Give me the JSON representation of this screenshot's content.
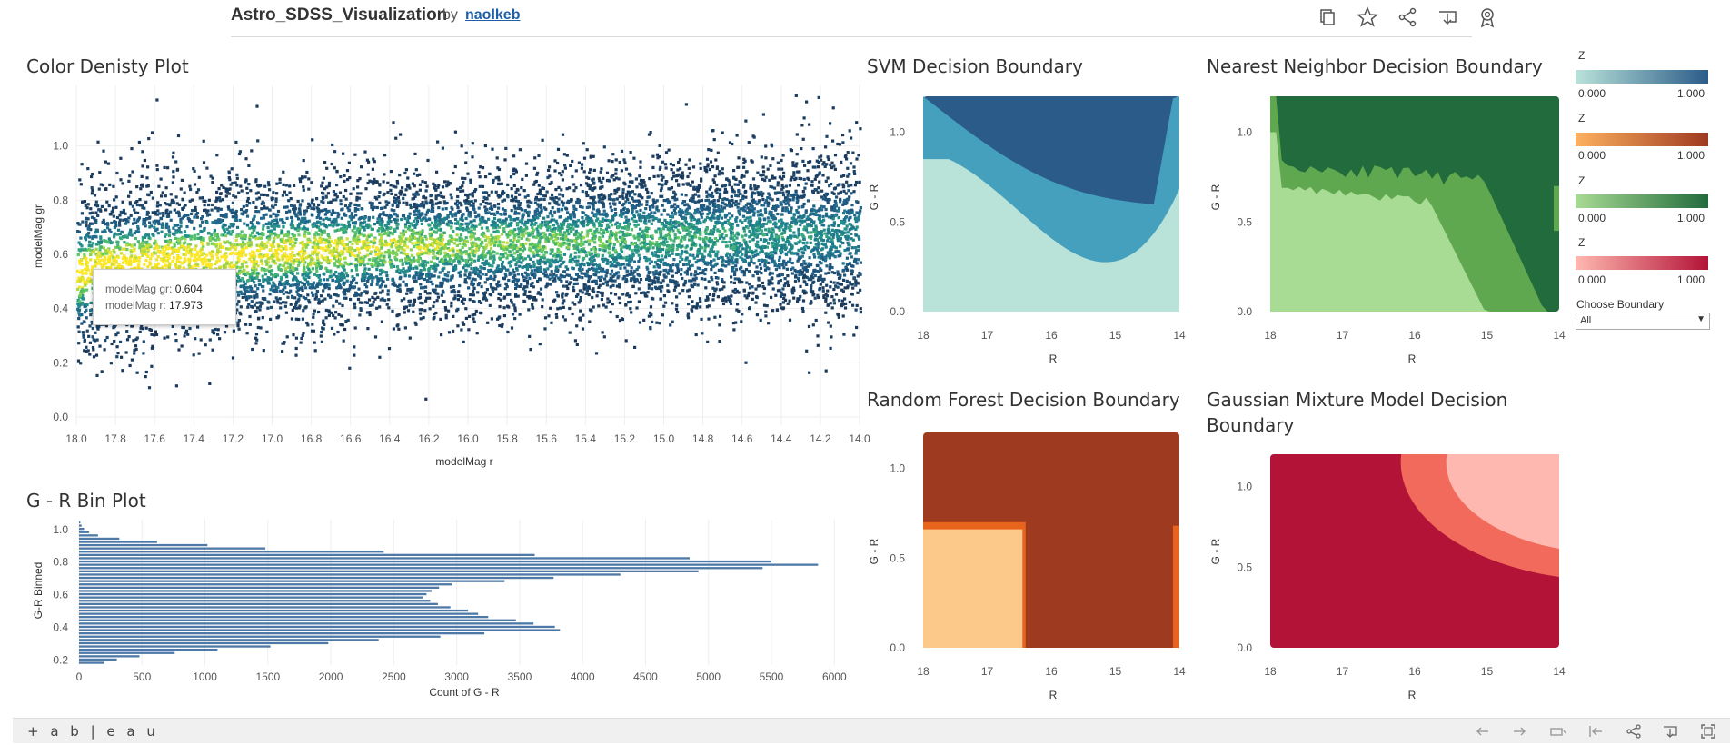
{
  "header": {
    "title": "Astro_SDSS_Visualization",
    "by": "by",
    "author": "naolkeb",
    "icons": [
      "copy-icon",
      "star-icon",
      "share-icon",
      "download-icon",
      "badge-icon"
    ]
  },
  "colors": {
    "viridis_low": "#1b3a5c",
    "viridis_mid": "#21918c",
    "viridis_high": "#fde725",
    "bar": "#4e79a7",
    "svm": [
      "#b9e3d9",
      "#45a0bd",
      "#2b5c89"
    ],
    "rf": [
      "#fdc98a",
      "#e8641c",
      "#9e3a20"
    ],
    "nn": [
      "#a8db94",
      "#5fa850",
      "#226b3c"
    ],
    "gmm": [
      "#ffb8b0",
      "#f26a5c",
      "#b31337"
    ]
  },
  "density": {
    "title": "Color Denisty Plot",
    "tooltip": {
      "gr_label": "modelMag gr:",
      "gr_value": "0.604",
      "r_label": "modelMag r:",
      "r_value": "17.973"
    },
    "chart_data": {
      "type": "scatter",
      "xlabel": "modelMag r",
      "ylabel": "modelMag gr",
      "xlim": [
        18.0,
        14.0
      ],
      "ylim": [
        0.0,
        1.2
      ],
      "x_ticks": [
        "18.0",
        "17.8",
        "17.6",
        "17.4",
        "17.2",
        "17.0",
        "16.8",
        "16.6",
        "16.4",
        "16.2",
        "16.0",
        "15.8",
        "15.6",
        "15.4",
        "15.2",
        "15.0",
        "14.8",
        "14.6",
        "14.4",
        "14.2",
        "14.0"
      ],
      "y_ticks": [
        "0.0",
        "0.2",
        "0.4",
        "0.6",
        "0.8",
        "1.0"
      ],
      "grid": true
    }
  },
  "bins": {
    "title": "G - R Bin Plot",
    "chart_data": {
      "type": "bar",
      "orientation": "horizontal",
      "xlabel": "Count of G - R",
      "ylabel": "G-R Binned",
      "xlim": [
        0,
        6200
      ],
      "x_ticks": [
        "0",
        "500",
        "1000",
        "1500",
        "2000",
        "2500",
        "3000",
        "3500",
        "4000",
        "4500",
        "5000",
        "5500",
        "6000"
      ],
      "y_ticks": [
        "0.2",
        "0.4",
        "0.6",
        "0.8",
        "1.0"
      ],
      "bin_gr": [
        0.18,
        0.2,
        0.22,
        0.24,
        0.26,
        0.28,
        0.3,
        0.32,
        0.34,
        0.36,
        0.38,
        0.4,
        0.42,
        0.44,
        0.46,
        0.48,
        0.5,
        0.52,
        0.54,
        0.56,
        0.58,
        0.6,
        0.62,
        0.64,
        0.66,
        0.68,
        0.7,
        0.72,
        0.74,
        0.76,
        0.78,
        0.8,
        0.82,
        0.84,
        0.86,
        0.88,
        0.9,
        0.92,
        0.94,
        0.96,
        0.98,
        1.0,
        1.02,
        1.04
      ],
      "values": [
        200,
        300,
        480,
        760,
        1100,
        1520,
        1980,
        2380,
        2870,
        3220,
        3820,
        3780,
        3610,
        3470,
        3250,
        3170,
        3090,
        2950,
        2850,
        2790,
        2730,
        2760,
        2800,
        2860,
        2960,
        3380,
        3770,
        4300,
        4920,
        5430,
        5870,
        5500,
        4850,
        3620,
        2420,
        1480,
        1020,
        620,
        320,
        150,
        80,
        40,
        20,
        10
      ],
      "grid": true
    }
  },
  "svm": {
    "title": "SVM Decision Boundary",
    "chart_data": {
      "type": "heatmap",
      "xlabel": "R",
      "ylabel": "G - R",
      "xlim": [
        18,
        14
      ],
      "ylim": [
        0.0,
        1.2
      ],
      "x_ticks": [
        "18",
        "17",
        "16",
        "15",
        "14"
      ],
      "y_ticks": [
        "0.0",
        "0.5",
        "1.0"
      ]
    }
  },
  "nn": {
    "title": "Nearest Neighbor Decision Boundary",
    "chart_data": {
      "type": "heatmap",
      "xlabel": "R",
      "ylabel": "G - R",
      "xlim": [
        18,
        14
      ],
      "ylim": [
        0.0,
        1.2
      ],
      "x_ticks": [
        "18",
        "17",
        "16",
        "15",
        "14"
      ],
      "y_ticks": [
        "0.0",
        "0.5",
        "1.0"
      ]
    }
  },
  "rf": {
    "title": "Random Forest Decision Boundary",
    "chart_data": {
      "type": "heatmap",
      "xlabel": "R",
      "ylabel": "G - R",
      "xlim": [
        18,
        14
      ],
      "ylim": [
        0.0,
        1.2
      ],
      "x_ticks": [
        "18",
        "17",
        "16",
        "15",
        "14"
      ],
      "y_ticks": [
        "0.0",
        "0.5",
        "1.0"
      ]
    }
  },
  "gmm": {
    "title": "Gaussian Mixture Model Decision",
    "title_line2": "Boundary",
    "chart_data": {
      "type": "heatmap",
      "xlabel": "R",
      "ylabel": "G - R",
      "xlim": [
        18,
        14
      ],
      "ylim": [
        0.0,
        1.2
      ],
      "x_ticks": [
        "18",
        "17",
        "16",
        "15",
        "14"
      ],
      "y_ticks": [
        "0.0",
        "0.5",
        "1.0"
      ]
    }
  },
  "legends": [
    {
      "title": "Z",
      "min": "0.000",
      "max": "1.000",
      "from": "#b9e3d9",
      "to": "#2b5c89"
    },
    {
      "title": "Z",
      "min": "0.000",
      "max": "1.000",
      "from": "#fdb160",
      "to": "#9e3a20"
    },
    {
      "title": "Z",
      "min": "0.000",
      "max": "1.000",
      "from": "#a8db94",
      "to": "#226b3c"
    },
    {
      "title": "Z",
      "min": "0.000",
      "max": "1.000",
      "from": "#ffb8b0",
      "to": "#b31337"
    }
  ],
  "boundary_filter": {
    "label": "Choose Boundary",
    "value": "All"
  },
  "footer": {
    "logo": "+ a b | e a u"
  }
}
